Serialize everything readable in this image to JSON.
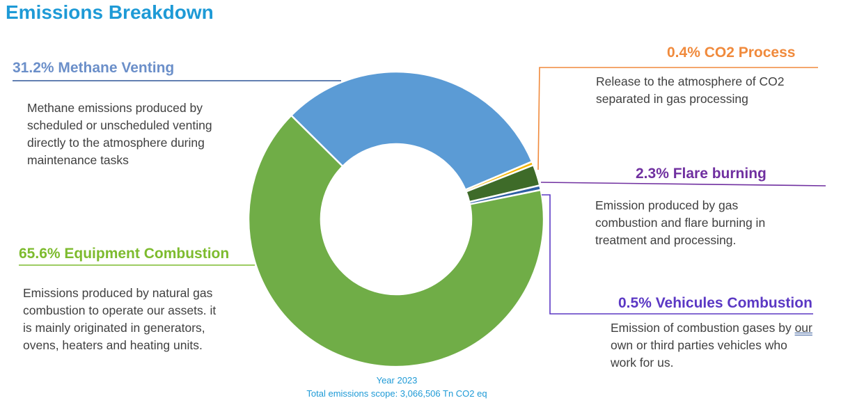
{
  "title": "Emissions Breakdown",
  "footer": {
    "year": "Year 2023",
    "total": "Total emissions scope: 3,066,506 Tn CO2 eq"
  },
  "chart_data": {
    "type": "donut",
    "title": "Emissions Breakdown",
    "series": [
      {
        "name": "Methane Venting",
        "value": 31.2,
        "label": "31.2% Methane Venting",
        "color": "#5b9bd5",
        "label_color": "#6b8fc9",
        "description": [
          "Methane emissions produced by",
          "scheduled or unscheduled venting",
          "directly to the atmosphere during",
          "maintenance tasks"
        ]
      },
      {
        "name": "CO2 Process",
        "value": 0.4,
        "label": "0.4% CO2 Process",
        "color": "#f5b400",
        "label_color": "#f08a3c",
        "description": [
          "Release to the atmosphere of CO2",
          "separated in gas processing"
        ]
      },
      {
        "name": "Flare burning",
        "value": 2.3,
        "label": "2.3% Flare burning",
        "color": "#3e6b29",
        "label_color": "#7030a0",
        "description": [
          "Emission produced by gas",
          "combustion and flare burning in",
          "treatment and processing."
        ]
      },
      {
        "name": "Vehicules Combustion",
        "value": 0.5,
        "label": "0.5% Vehicules Combustion",
        "color": "#2e5fa3",
        "label_color": "#5b38c4",
        "description": [
          "Emission of combustion gases by our",
          "own or third parties vehicles who",
          "work for us."
        ]
      },
      {
        "name": "Equipment Combustion",
        "value": 65.6,
        "label": "65.6% Equipment Combustion",
        "color": "#70ad47",
        "label_color": "#7dbb2e",
        "description": [
          "Emissions produced by natural gas",
          "combustion to operate our assets. it",
          "is mainly originated in generators,",
          "ovens, heaters and heating units."
        ]
      }
    ]
  }
}
